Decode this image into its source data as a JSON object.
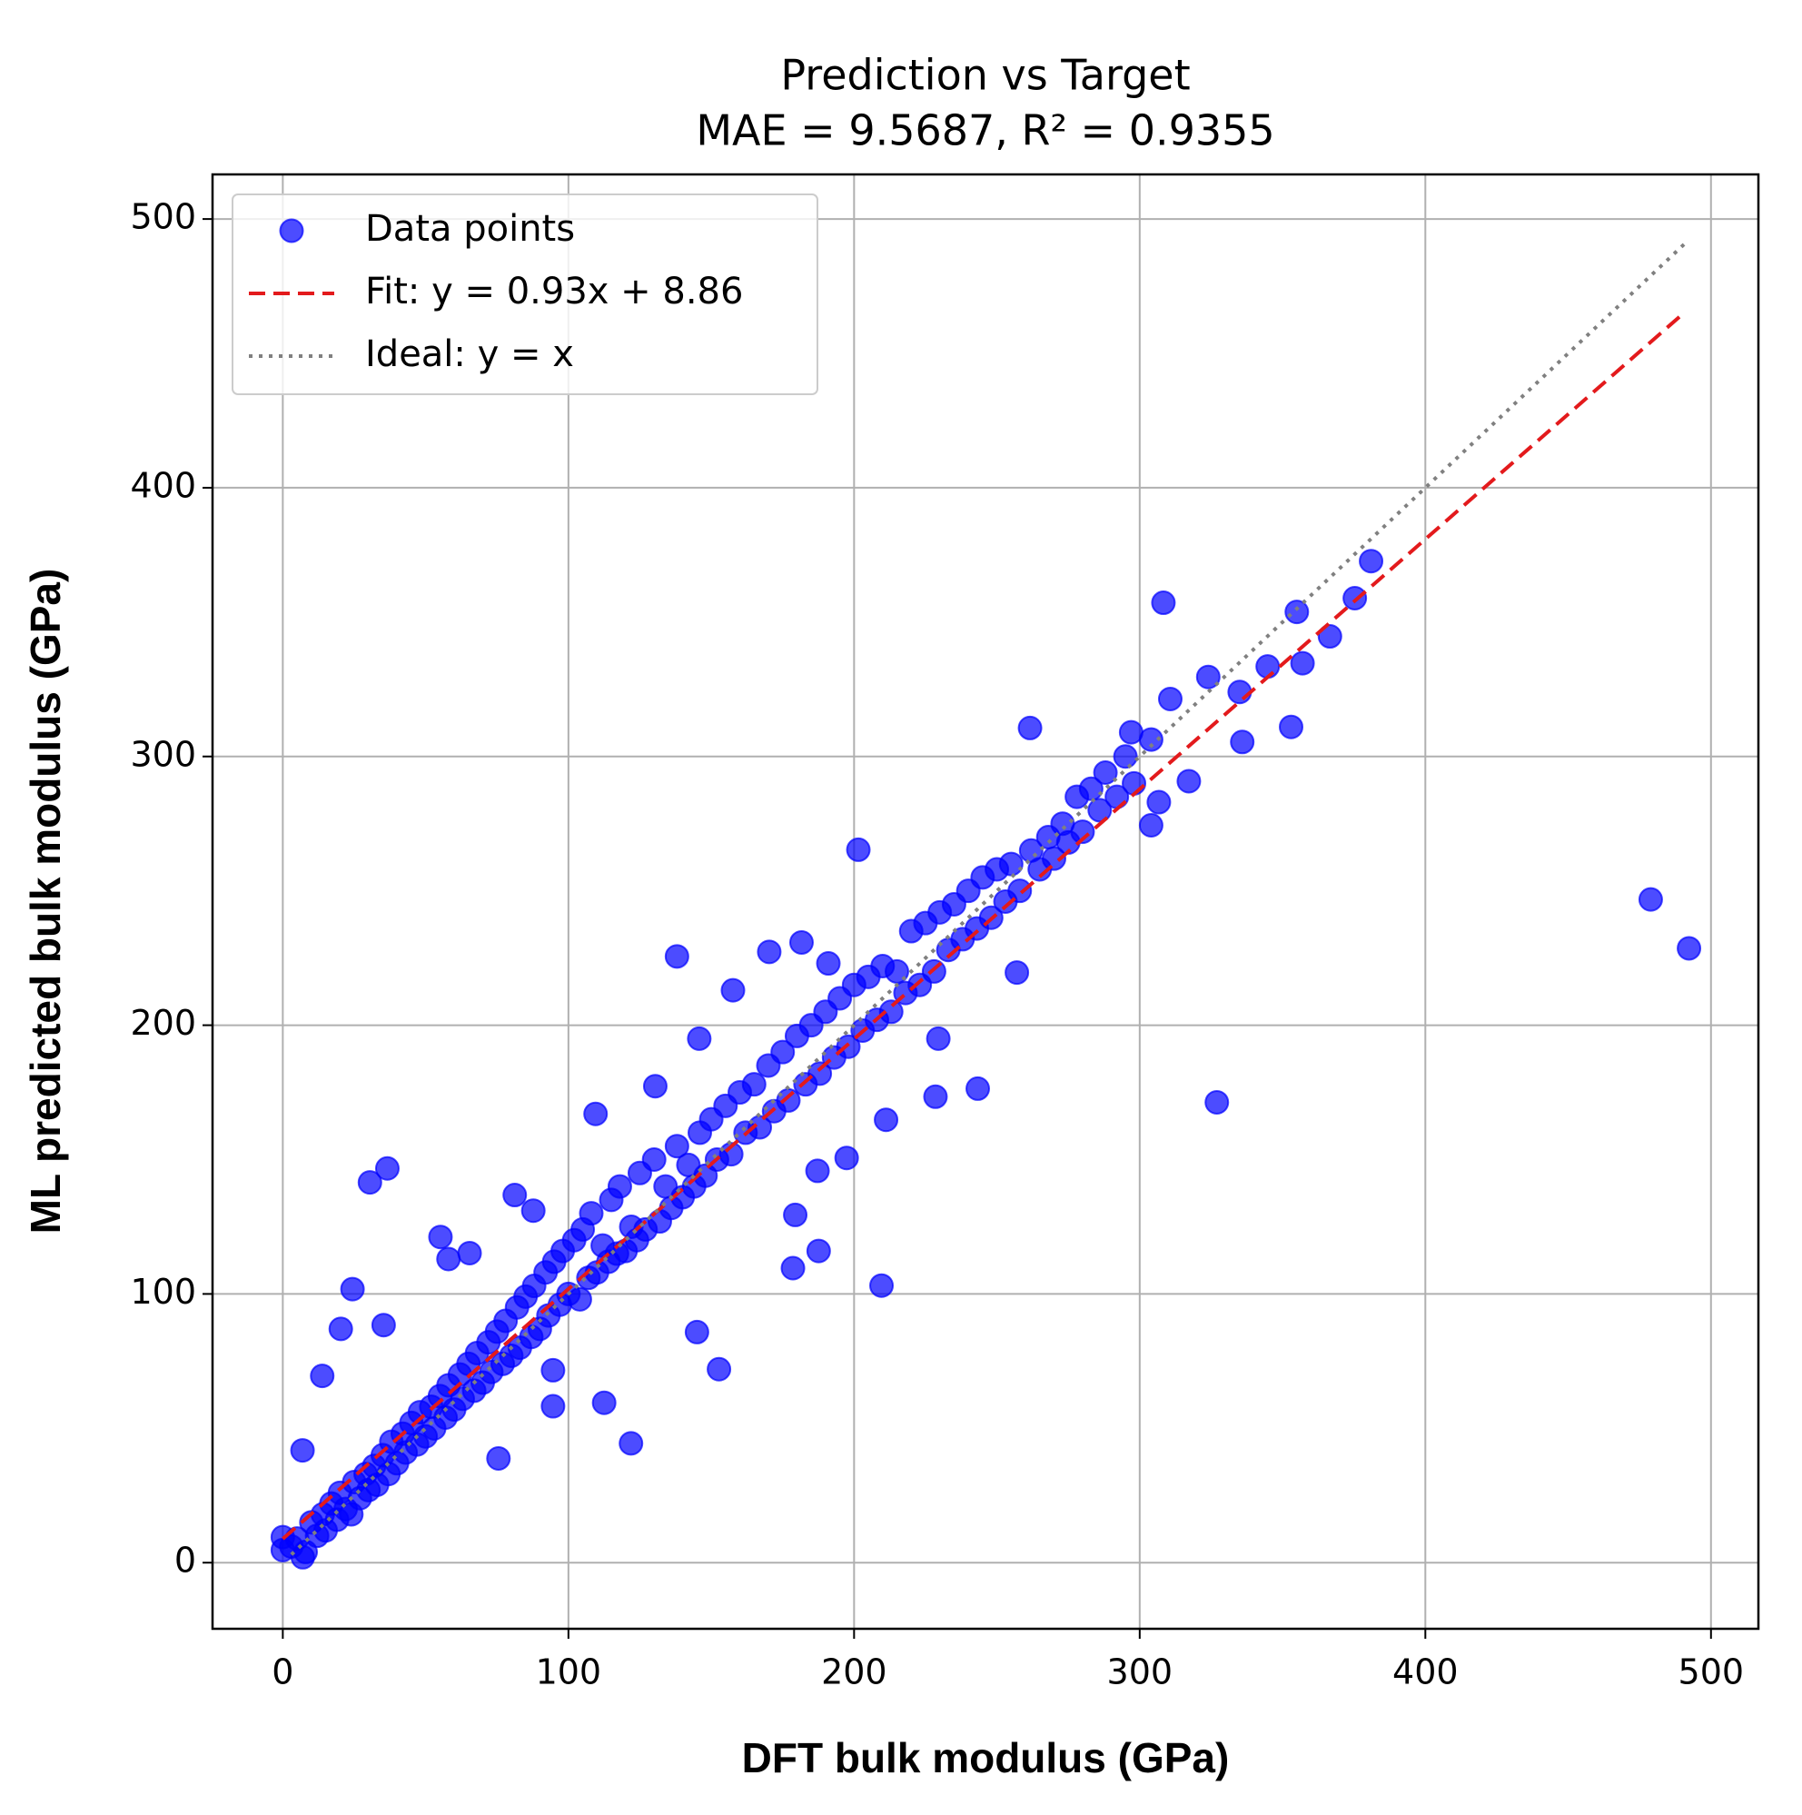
{
  "chart_data": {
    "type": "scatter",
    "title": "Prediction vs Target",
    "subtitle": "MAE = 9.5687, R² = 0.9355",
    "x_label": "DFT bulk modulus (GPa)",
    "y_label": "ML predicted bulk modulus (GPa)",
    "xlim": [
      -24.6,
      516.6
    ],
    "ylim": [
      -24.6,
      516.6
    ],
    "xticks": [
      0,
      100,
      200,
      300,
      400,
      500
    ],
    "yticks": [
      0,
      100,
      200,
      300,
      400,
      500
    ],
    "grid": true,
    "legend": "upper left",
    "series": [
      {
        "name": "Data points",
        "type": "scatter",
        "color": "#0000ff",
        "x": [
          3,
          5,
          8,
          10,
          12,
          14,
          15,
          17,
          19,
          20,
          22,
          24,
          25,
          27,
          29,
          30,
          32,
          33,
          35,
          37,
          38,
          40,
          42,
          43,
          45,
          47,
          48,
          50,
          52,
          53,
          55,
          57,
          58,
          60,
          62,
          63,
          65,
          67,
          68,
          70,
          72,
          73,
          75,
          77,
          78,
          80,
          82,
          83,
          85,
          87,
          88,
          90,
          92,
          93,
          95,
          97,
          98,
          100,
          102,
          104,
          105,
          107,
          108,
          110,
          112,
          114,
          115,
          117,
          118,
          120,
          122,
          124,
          125,
          127,
          130,
          132,
          134,
          136,
          138,
          140,
          142,
          144,
          146,
          148,
          150,
          152,
          155,
          157,
          160,
          162,
          165,
          167,
          170,
          172,
          175,
          177,
          180,
          183,
          185,
          188,
          190,
          193,
          195,
          198,
          200,
          203,
          205,
          208,
          210,
          213,
          215,
          218,
          220,
          223,
          225,
          228,
          230,
          233,
          235,
          238,
          240,
          243,
          245,
          248,
          250,
          253,
          255,
          258,
          262,
          265,
          268,
          270,
          273,
          275,
          278,
          280,
          283,
          286,
          288,
          292,
          295,
          298,
          478.9,
          492.3,
          327,
          308.3,
          381,
          201.5,
          138,
          209.6,
          121.9,
          152.7,
          30.5,
          36.6,
          24.4,
          261.6,
          355,
          366.6,
          375.3,
          344.8,
          357,
          353,
          335.9,
          335,
          324,
          310.7,
          317.2,
          306.7,
          304,
          304,
          297,
          243.3,
          229.5,
          228.5,
          257,
          181.6,
          170.3,
          191,
          145.8,
          157.6,
          130.4,
          109.5,
          197.4,
          211.2,
          187.2,
          179.4,
          178.6,
          187.6,
          145,
          94.6,
          94.6,
          112.5,
          81.2,
          87.7,
          55.2,
          65.4,
          58,
          6.9,
          13.8,
          20.3,
          35.3,
          7,
          0,
          0,
          75.5
        ],
        "values": [
          6,
          9,
          4,
          15,
          10,
          18,
          12,
          22,
          16,
          26,
          20,
          18,
          30,
          24,
          33,
          27,
          36,
          29,
          40,
          33,
          45,
          37,
          48,
          41,
          52,
          44,
          56,
          47,
          58,
          50,
          62,
          54,
          66,
          57,
          70,
          61,
          74,
          64,
          78,
          67,
          82,
          71,
          86,
          74,
          90,
          77,
          95,
          80,
          99,
          84,
          103,
          87,
          108,
          92,
          112,
          96,
          116,
          100,
          120,
          98,
          124,
          106,
          130,
          108,
          118,
          112,
          135,
          115,
          140,
          116,
          125,
          120,
          145,
          124,
          150,
          127,
          140,
          132,
          155,
          136,
          148,
          140,
          160,
          144,
          165,
          150,
          170,
          152,
          175,
          160,
          178,
          162,
          185,
          168,
          190,
          172,
          196,
          178,
          200,
          182,
          205,
          188,
          210,
          192,
          215,
          198,
          218,
          202,
          222,
          205,
          220,
          212,
          235,
          215,
          238,
          220,
          242,
          228,
          245,
          232,
          250,
          236,
          255,
          240,
          258,
          246,
          260,
          250,
          265,
          258,
          270,
          262,
          275,
          268,
          285,
          272,
          288,
          280,
          294,
          285,
          300,
          290,
          246.8,
          228.6,
          171.3,
          357.2,
          372.7,
          265.3,
          225.6,
          103.1,
          44.4,
          72,
          141.5,
          146.7,
          101.8,
          310.6,
          353.8,
          344.7,
          358.9,
          333.5,
          334.7,
          311,
          305.4,
          324,
          329.6,
          321.4,
          290.8,
          283,
          274.4,
          306.3,
          309,
          176.4,
          195,
          173.4,
          219.6,
          230.8,
          227.3,
          223,
          195,
          213,
          177.3,
          167,
          150.6,
          164.8,
          145.8,
          129.4,
          109.6,
          116,
          85.8,
          71.6,
          58.2,
          59.5,
          136.8,
          131,
          121.2,
          115.2,
          113,
          41.8,
          69.5,
          87,
          88.4,
          2,
          4.7,
          9.5,
          38.8
        ]
      },
      {
        "name": "Fit: y = 0.93x + 8.86",
        "type": "line",
        "color": "#e31a1c",
        "linestyle": "dashed",
        "x": [
          0,
          491
        ],
        "values": [
          8.86,
          465.5
        ]
      },
      {
        "name": "Ideal: y = x",
        "type": "line",
        "color": "#808080",
        "linestyle": "dotted",
        "x": [
          3,
          491
        ],
        "values": [
          3,
          491
        ]
      }
    ]
  }
}
